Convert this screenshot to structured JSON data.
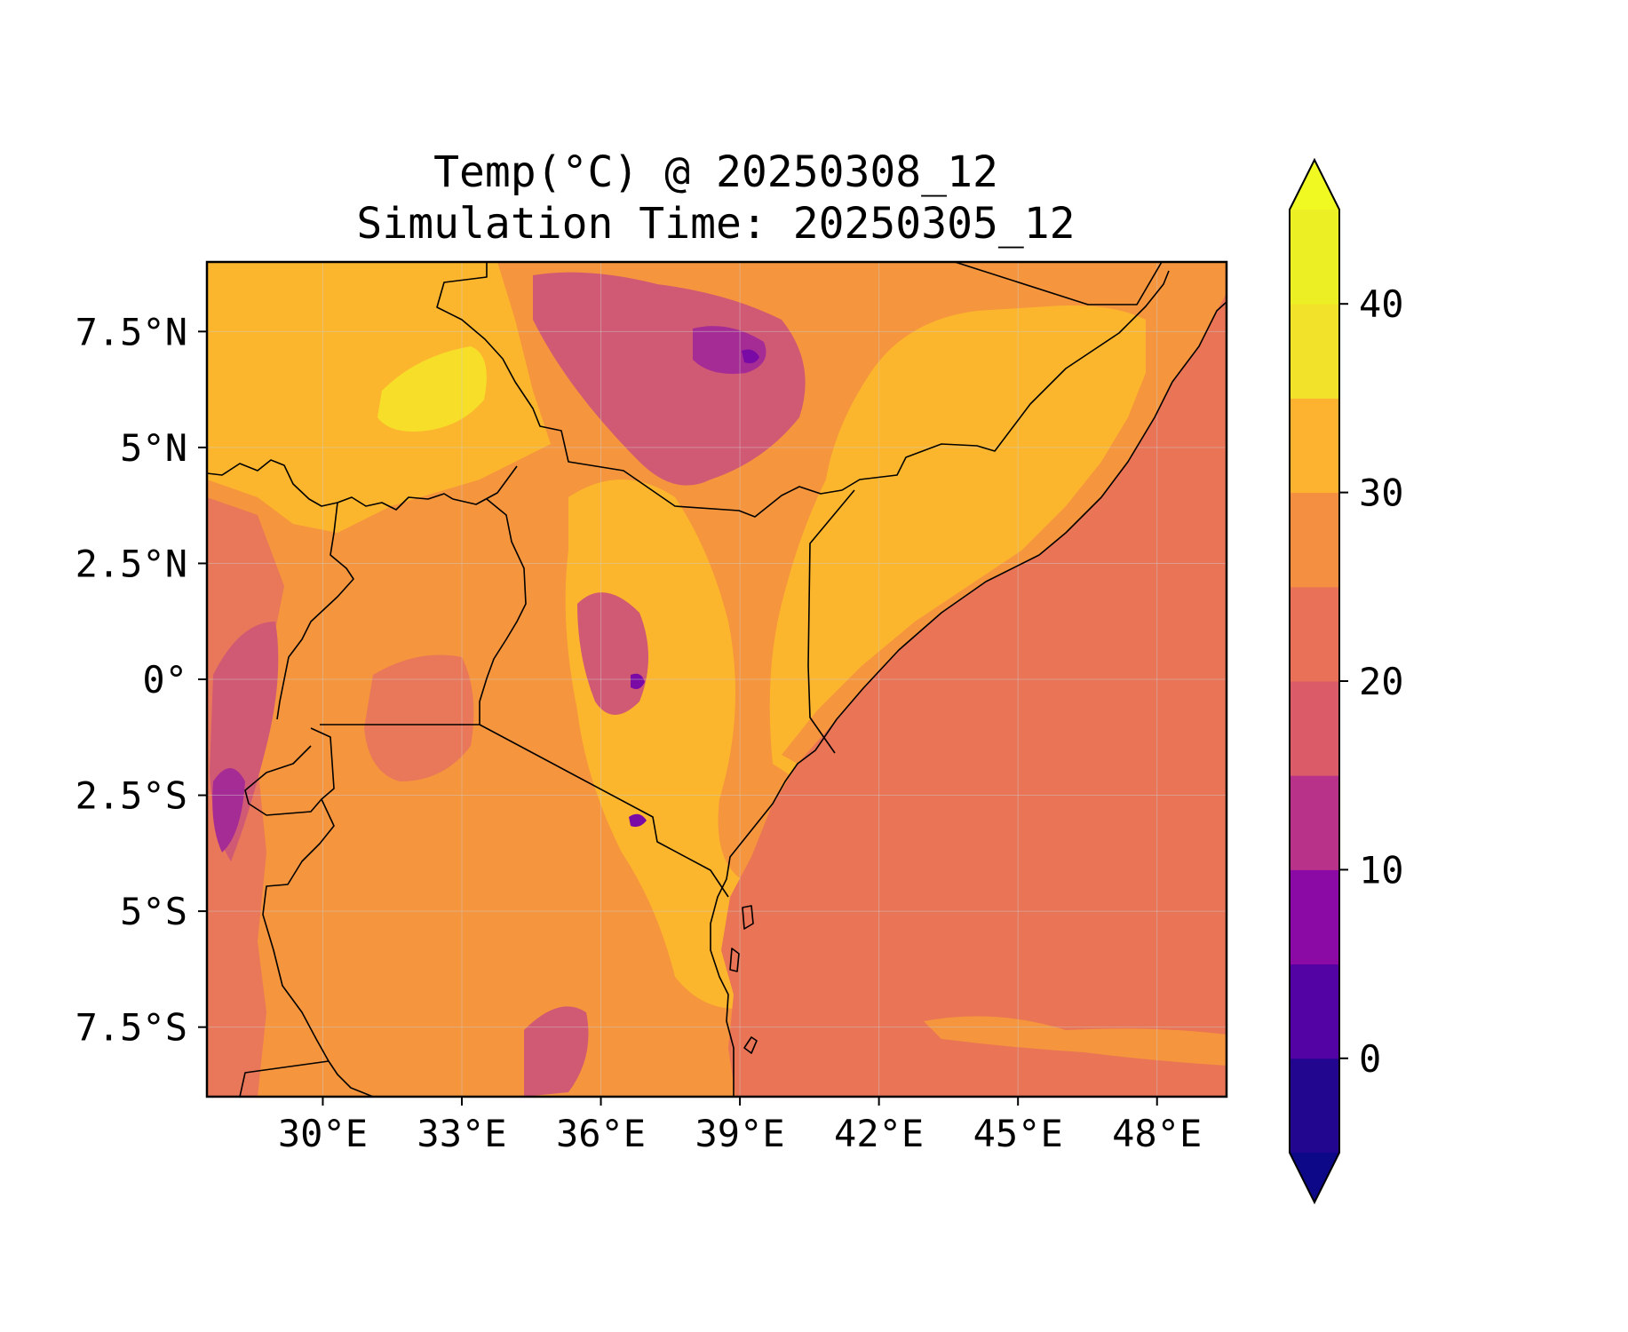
{
  "title": {
    "line1": "Temp(°C) @ 20250308_12",
    "line2": "Simulation Time: 20250305_12"
  },
  "map": {
    "type": "filled-contour",
    "variable": "Temp(°C)",
    "lon_range": [
      27.5,
      49.5
    ],
    "lat_range": [
      -9,
      9
    ],
    "lon_ticks": [
      30,
      33,
      36,
      39,
      42,
      45,
      48
    ],
    "lat_ticks": [
      7.5,
      5,
      2.5,
      0,
      -2.5,
      -5,
      -7.5
    ],
    "lon_tick_labels": [
      "30°E",
      "33°E",
      "36°E",
      "39°E",
      "42°E",
      "45°E",
      "48°E"
    ],
    "lat_tick_labels": [
      "7.5°N",
      "5°N",
      "2.5°N",
      "0°",
      "2.5°S",
      "5°S",
      "7.5°S"
    ],
    "gridlines": true,
    "coastlines": true,
    "country_borders": true
  },
  "colorbar": {
    "levels": [
      -5,
      0,
      5,
      10,
      15,
      20,
      25,
      30,
      35,
      40,
      45
    ],
    "tick_values": [
      0,
      10,
      20,
      30,
      40
    ],
    "tick_labels": [
      "0",
      "10",
      "20",
      "30",
      "40"
    ],
    "extend": "both",
    "under_color": "#0d0887",
    "over_color": "#f0f921",
    "colors": [
      "#220690",
      "#5302a3",
      "#8b0aa5",
      "#b83289",
      "#db5c68",
      "#e97158",
      "#f48f42",
      "#fdb32f",
      "#f3e22a",
      "#ecef24"
    ],
    "colormap": "plasma"
  },
  "palette": {
    "ocean": "#e97456",
    "land_base": "#f5953d",
    "land_hot": "#fcb62e",
    "land_hottest": "#f7df29",
    "land_warm": "#e9775a",
    "land_cool": "#d05a74",
    "land_cold": "#a62c95",
    "land_coldest": "#7a0aa6"
  }
}
